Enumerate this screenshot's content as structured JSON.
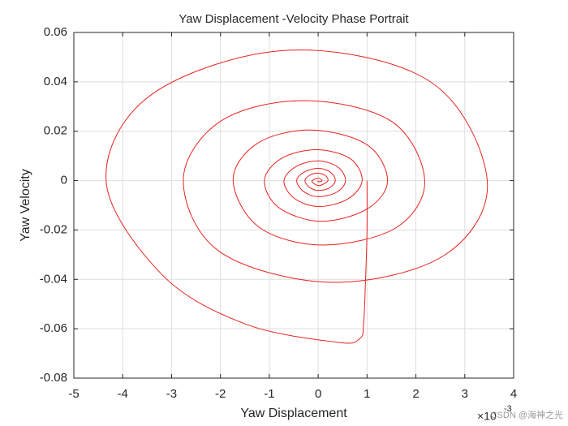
{
  "chart_data": {
    "type": "line",
    "title": "Yaw Displacement -Velocity Phase Portrait",
    "xlabel": "Yaw Displacement",
    "ylabel": "Yaw Velocity",
    "x_exponent_base": "×10",
    "x_exponent": "-3",
    "watermark": "CSDN @海神之光",
    "xlim": [
      -5,
      4
    ],
    "ylim": [
      -0.08,
      0.06
    ],
    "xticks": [
      -5,
      -4,
      -3,
      -2,
      -1,
      0,
      1,
      2,
      3,
      4
    ],
    "yticks": [
      -0.08,
      -0.06,
      -0.04,
      -0.02,
      0,
      0.02,
      0.04,
      0.06
    ],
    "grid": true,
    "series": [
      {
        "color": "#e8231e",
        "x": [
          1.0,
          1.0,
          0.97,
          0.93,
          0.85,
          0.4,
          -1.5,
          -3.2,
          -4.34,
          -3.4,
          -0.6,
          2.3,
          3.46,
          2.6,
          0.3,
          -2.0,
          -2.76,
          -2.0,
          -0.3,
          1.5,
          2.18,
          1.6,
          0.1,
          -1.2,
          -1.74,
          -1.25,
          -0.15,
          1.0,
          1.42,
          1.0,
          0.05,
          -0.8,
          -1.1,
          -0.75,
          -0.05,
          0.65,
          0.9,
          0.6,
          0,
          -0.5,
          -0.7,
          -0.45,
          0,
          0.4,
          0.56,
          0.38,
          0,
          -0.3,
          -0.44,
          -0.28,
          0,
          0.25,
          0.35,
          0.23,
          0,
          -0.18,
          -0.27,
          -0.17,
          0,
          0.15,
          0.2,
          0.1,
          0,
          -0.1,
          -0.12,
          0,
          0.08,
          0,
          0
        ],
        "values": [
          0,
          -0.02,
          -0.04,
          -0.058,
          -0.064,
          -0.0655,
          -0.058,
          -0.038,
          0,
          0.035,
          0.0528,
          0.04,
          0,
          -0.03,
          -0.0412,
          -0.029,
          0,
          0.024,
          0.0324,
          0.024,
          0,
          -0.019,
          -0.0261,
          -0.019,
          0,
          0.015,
          0.0205,
          0.0145,
          0,
          -0.0115,
          -0.0165,
          -0.011,
          0,
          0.009,
          0.0125,
          0.009,
          0,
          -0.0075,
          -0.0105,
          -0.007,
          0,
          0.0057,
          0.008,
          0.0055,
          0,
          -0.0047,
          -0.0065,
          -0.0044,
          0,
          0.0035,
          0.005,
          0.0034,
          0,
          -0.003,
          -0.004,
          -0.0027,
          0,
          0.0022,
          0.003,
          0.002,
          0,
          -0.0015,
          -0.002,
          -0.001,
          0,
          0.001,
          0,
          -0.0005,
          0
        ]
      }
    ]
  }
}
